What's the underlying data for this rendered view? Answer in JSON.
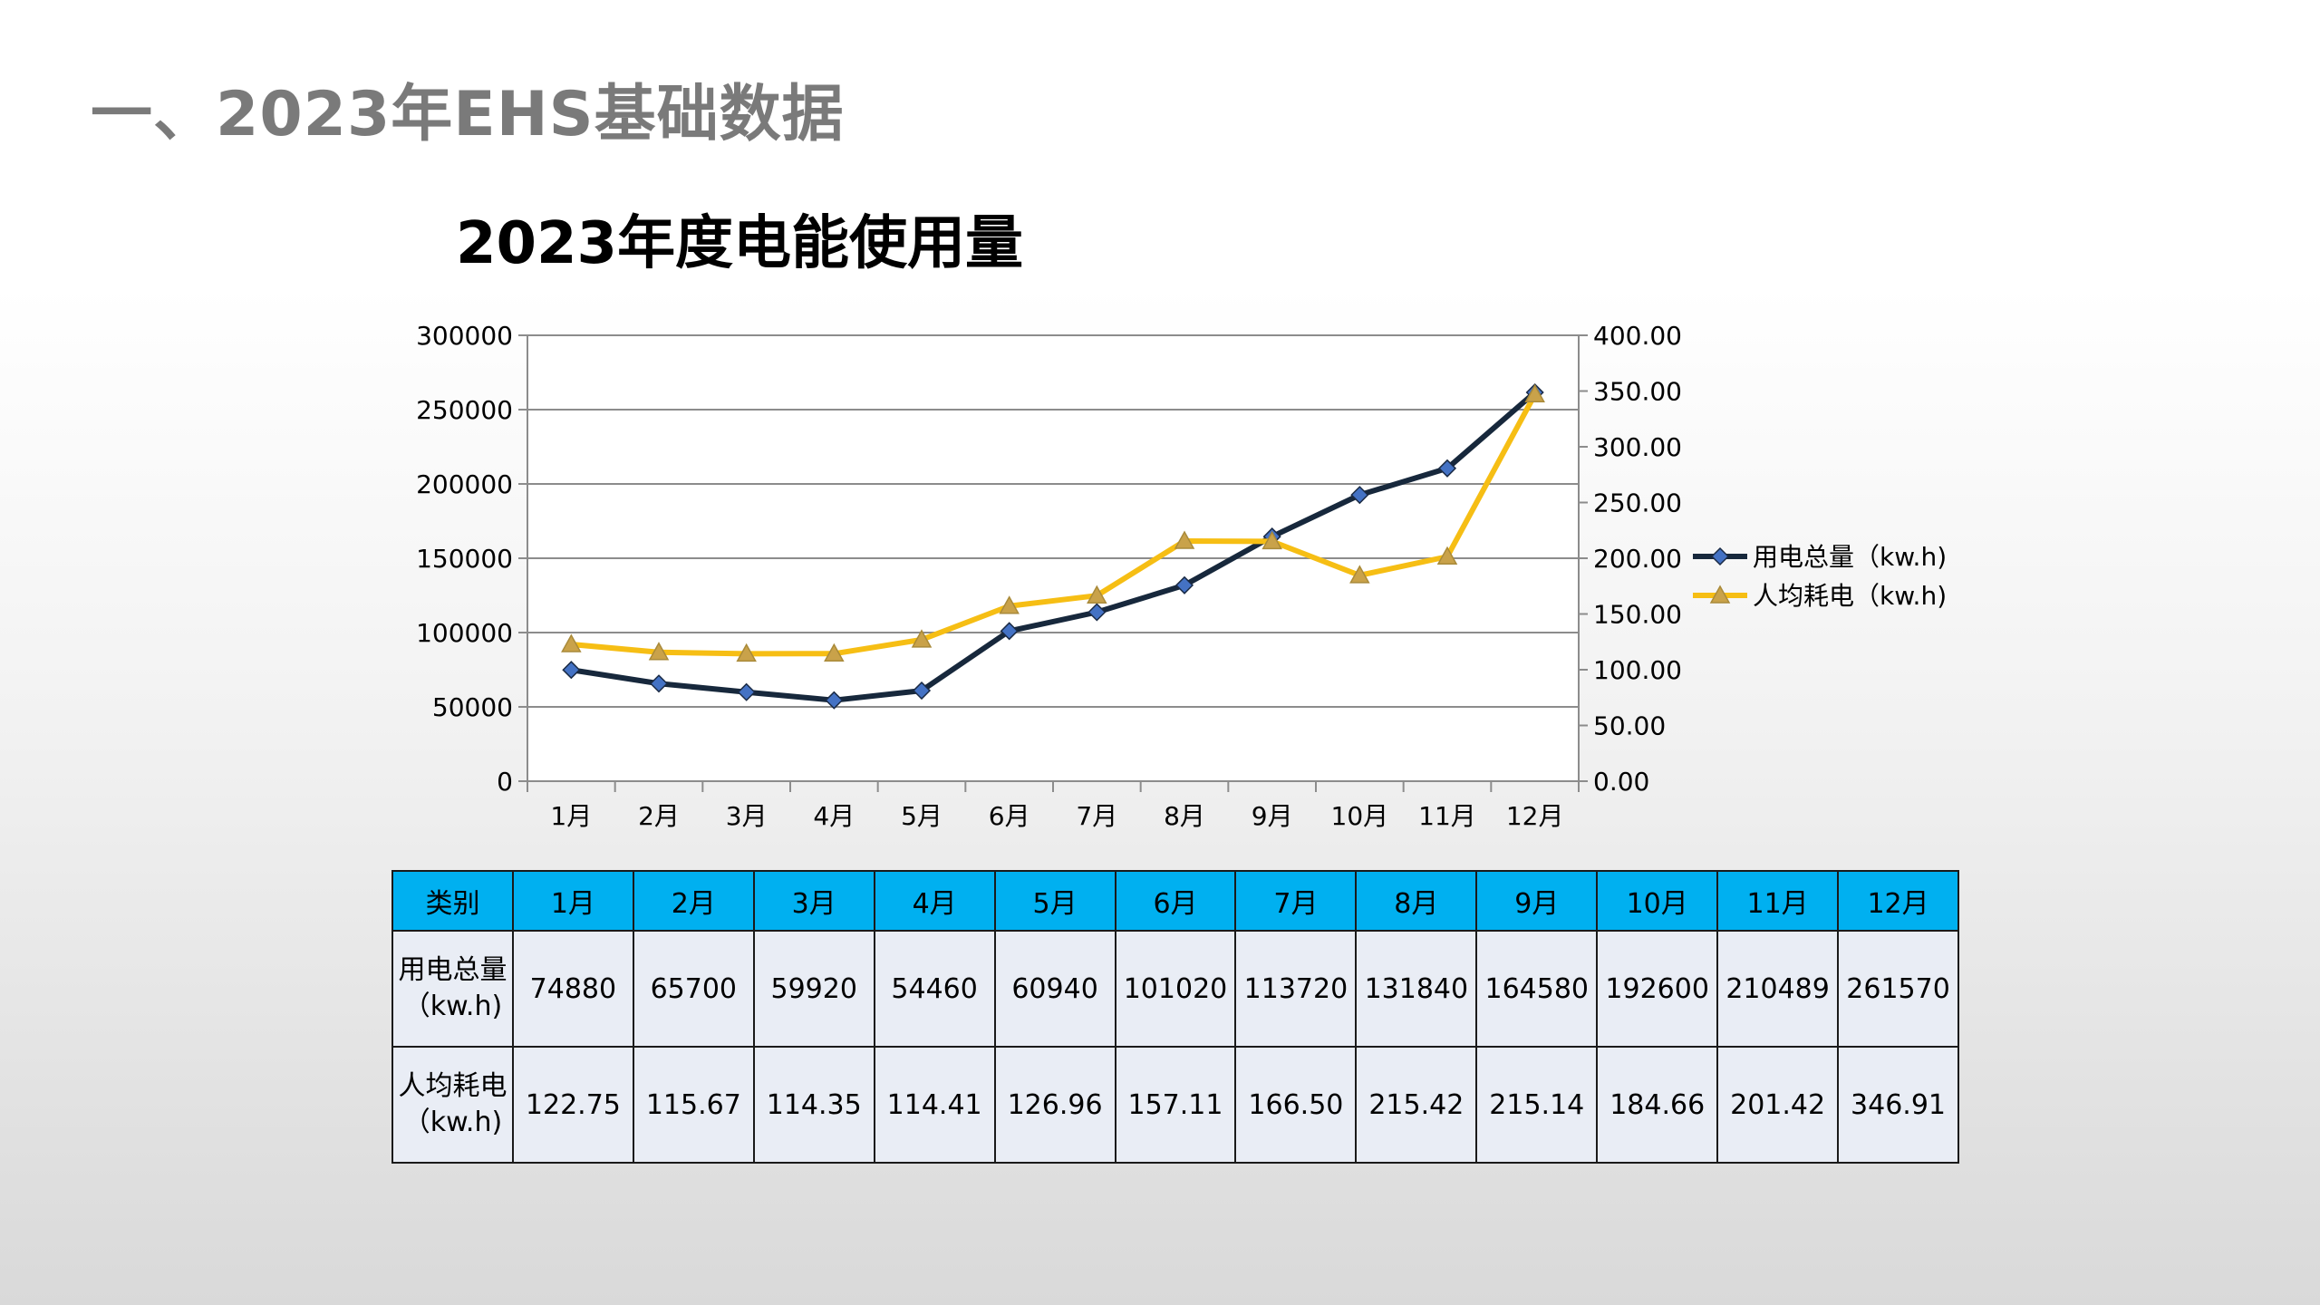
{
  "page": {
    "title": "一、2023年EHS基础数据"
  },
  "chart_data": {
    "type": "line",
    "title": "2023年度电能使用量",
    "categories": [
      "1月",
      "2月",
      "3月",
      "4月",
      "5月",
      "6月",
      "7月",
      "8月",
      "9月",
      "10月",
      "11月",
      "12月"
    ],
    "series": [
      {
        "name": "用电总量（kw.h)",
        "axis": "left",
        "color": "#17283c",
        "marker": "diamond",
        "marker_color": "#4472c4",
        "values": [
          74880,
          65700,
          59920,
          54460,
          60940,
          101020,
          113720,
          131840,
          164580,
          192600,
          210489,
          261570
        ]
      },
      {
        "name": "人均耗电（kw.h)",
        "axis": "right",
        "color": "#f6be14",
        "marker": "triangle",
        "marker_color": "#c9a24a",
        "values": [
          122.75,
          115.67,
          114.35,
          114.41,
          126.96,
          157.11,
          166.5,
          215.42,
          215.14,
          184.66,
          201.42,
          346.91
        ]
      }
    ],
    "y_left": {
      "ylim": [
        0,
        300000
      ],
      "ticks": [
        "0",
        "50000",
        "100000",
        "150000",
        "200000",
        "250000",
        "300000"
      ]
    },
    "y_right": {
      "ylim": [
        0,
        400
      ],
      "ticks": [
        "0.00",
        "50.00",
        "100.00",
        "150.00",
        "200.00",
        "250.00",
        "300.00",
        "350.00",
        "400.00"
      ]
    },
    "grid": true,
    "legend_position": "right"
  },
  "table": {
    "header": [
      "类别",
      "1月",
      "2月",
      "3月",
      "4月",
      "5月",
      "6月",
      "7月",
      "8月",
      "9月",
      "10月",
      "11月",
      "12月"
    ],
    "rows": [
      {
        "label_line1": "用电总量",
        "label_line2": "（kw.h)",
        "values": [
          "74880",
          "65700",
          "59920",
          "54460",
          "60940",
          "101020",
          "113720",
          "131840",
          "164580",
          "192600",
          "210489",
          "261570"
        ]
      },
      {
        "label_line1": "人均耗电",
        "label_line2": "（kw.h)",
        "values": [
          "122.75",
          "115.67",
          "114.35",
          "114.41",
          "126.96",
          "157.11",
          "166.50",
          "215.42",
          "215.14",
          "184.66",
          "201.42",
          "346.91"
        ]
      }
    ]
  }
}
